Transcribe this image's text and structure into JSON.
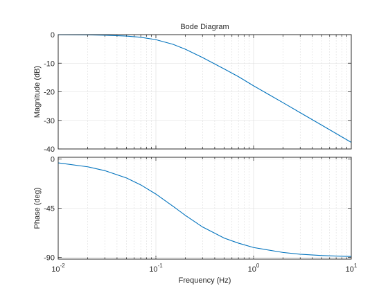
{
  "chart_data": [
    {
      "type": "line",
      "panel": "magnitude",
      "title": "Bode Diagram",
      "xlabel": "",
      "ylabel": "Magnitude (dB)",
      "xscale": "log",
      "xlim": [
        0.01,
        10
      ],
      "ylim": [
        -40,
        0
      ],
      "yticks": [
        0,
        -10,
        -20,
        -30,
        -40
      ],
      "yticklabels": [
        "0",
        "-10",
        "-20",
        "-30",
        "-40"
      ],
      "grid": true,
      "series": [
        {
          "color": "#0072bd",
          "x": [
            0.01,
            0.02,
            0.03,
            0.05,
            0.07,
            0.1,
            0.15,
            0.2,
            0.3,
            0.5,
            0.7,
            1,
            2,
            3,
            5,
            7,
            10
          ],
          "y": [
            -0.02,
            -0.09,
            -0.2,
            -0.5,
            -0.93,
            -1.76,
            -3.4,
            -5.1,
            -8.0,
            -12.0,
            -14.7,
            -17.9,
            -23.8,
            -27.3,
            -31.7,
            -34.6,
            -37.7
          ]
        }
      ]
    },
    {
      "type": "line",
      "panel": "phase",
      "xlabel": "Frequency  (Hz)",
      "ylabel": "Phase (deg)",
      "xscale": "log",
      "xlim": [
        0.01,
        10
      ],
      "ylim": [
        -91.5,
        1.5
      ],
      "yticks": [
        0,
        -45,
        -90
      ],
      "yticklabels": [
        "0",
        "-45",
        "-90"
      ],
      "xticks": [
        0.01,
        0.1,
        1,
        10
      ],
      "xticklabels": [
        [
          "10",
          "-2"
        ],
        [
          "10",
          "-1"
        ],
        [
          "10",
          "0"
        ],
        [
          "10",
          "1"
        ]
      ],
      "grid": true,
      "series": [
        {
          "color": "#0072bd",
          "x": [
            0.01,
            0.02,
            0.03,
            0.05,
            0.07,
            0.1,
            0.15,
            0.2,
            0.3,
            0.5,
            0.7,
            1,
            2,
            3,
            5,
            7,
            10
          ],
          "y": [
            -3.6,
            -7.2,
            -10.7,
            -17.4,
            -23.7,
            -32.1,
            -43.3,
            -51.5,
            -62.1,
            -72.3,
            -76.9,
            -80.9,
            -85.4,
            -87.0,
            -88.2,
            -88.7,
            -89.1
          ]
        }
      ]
    }
  ]
}
